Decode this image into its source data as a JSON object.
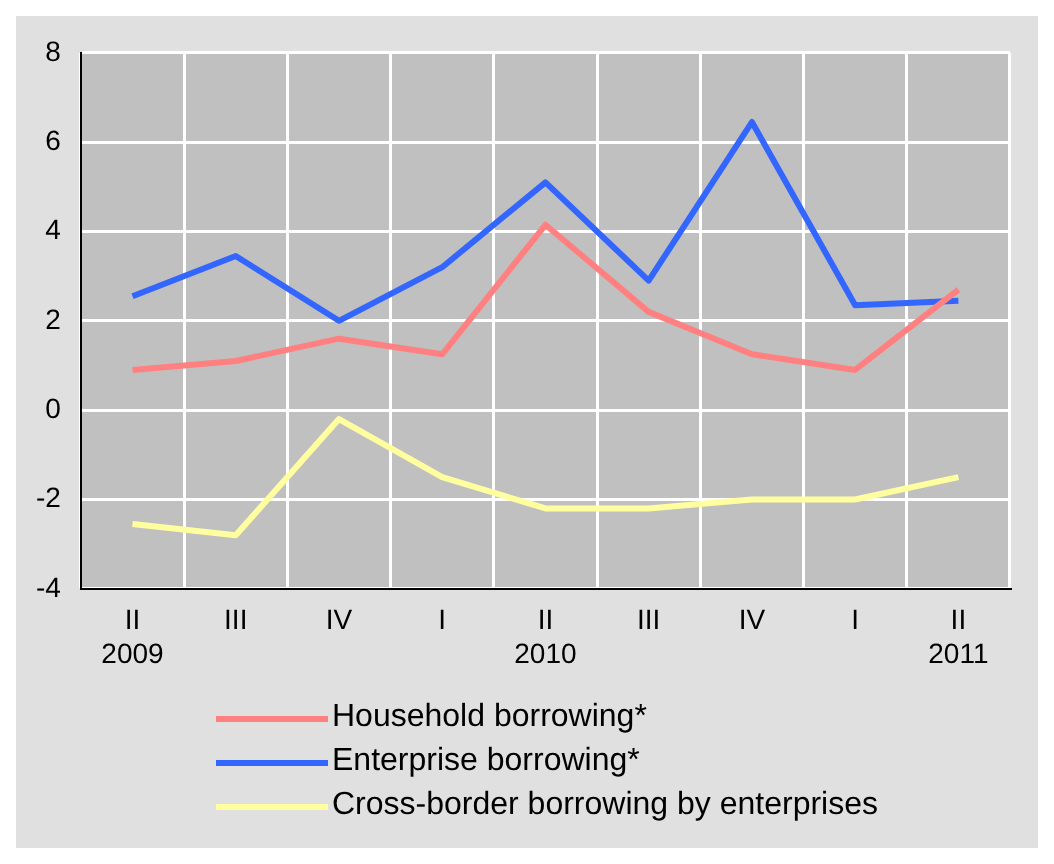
{
  "chart_data": {
    "type": "line",
    "categories": [
      "II\n2009",
      "III",
      "IV",
      "I",
      "II\n2010",
      "III",
      "IV",
      "I",
      "II\n2011"
    ],
    "series": [
      {
        "name": "Household borrowing*",
        "color": "#ff8080",
        "values": [
          0.9,
          1.1,
          1.6,
          1.25,
          4.15,
          2.2,
          1.25,
          0.9,
          2.7
        ]
      },
      {
        "name": "Enterprise borrowing*",
        "color": "#3366ff",
        "values": [
          2.55,
          3.45,
          2.0,
          3.2,
          5.1,
          2.9,
          6.45,
          2.35,
          2.45
        ]
      },
      {
        "name": "Cross-border borrowing by enterprises",
        "color": "#ffffa0",
        "values": [
          -2.55,
          -2.8,
          -0.2,
          -1.5,
          -2.2,
          -2.2,
          -2.0,
          -2.0,
          -1.5
        ]
      }
    ],
    "ylim": [
      -4,
      8
    ],
    "yticks": [
      -4,
      -2,
      0,
      2,
      4,
      6,
      8
    ],
    "grid": true,
    "legend": "bottom",
    "marker": "none",
    "line_style": "solid"
  }
}
